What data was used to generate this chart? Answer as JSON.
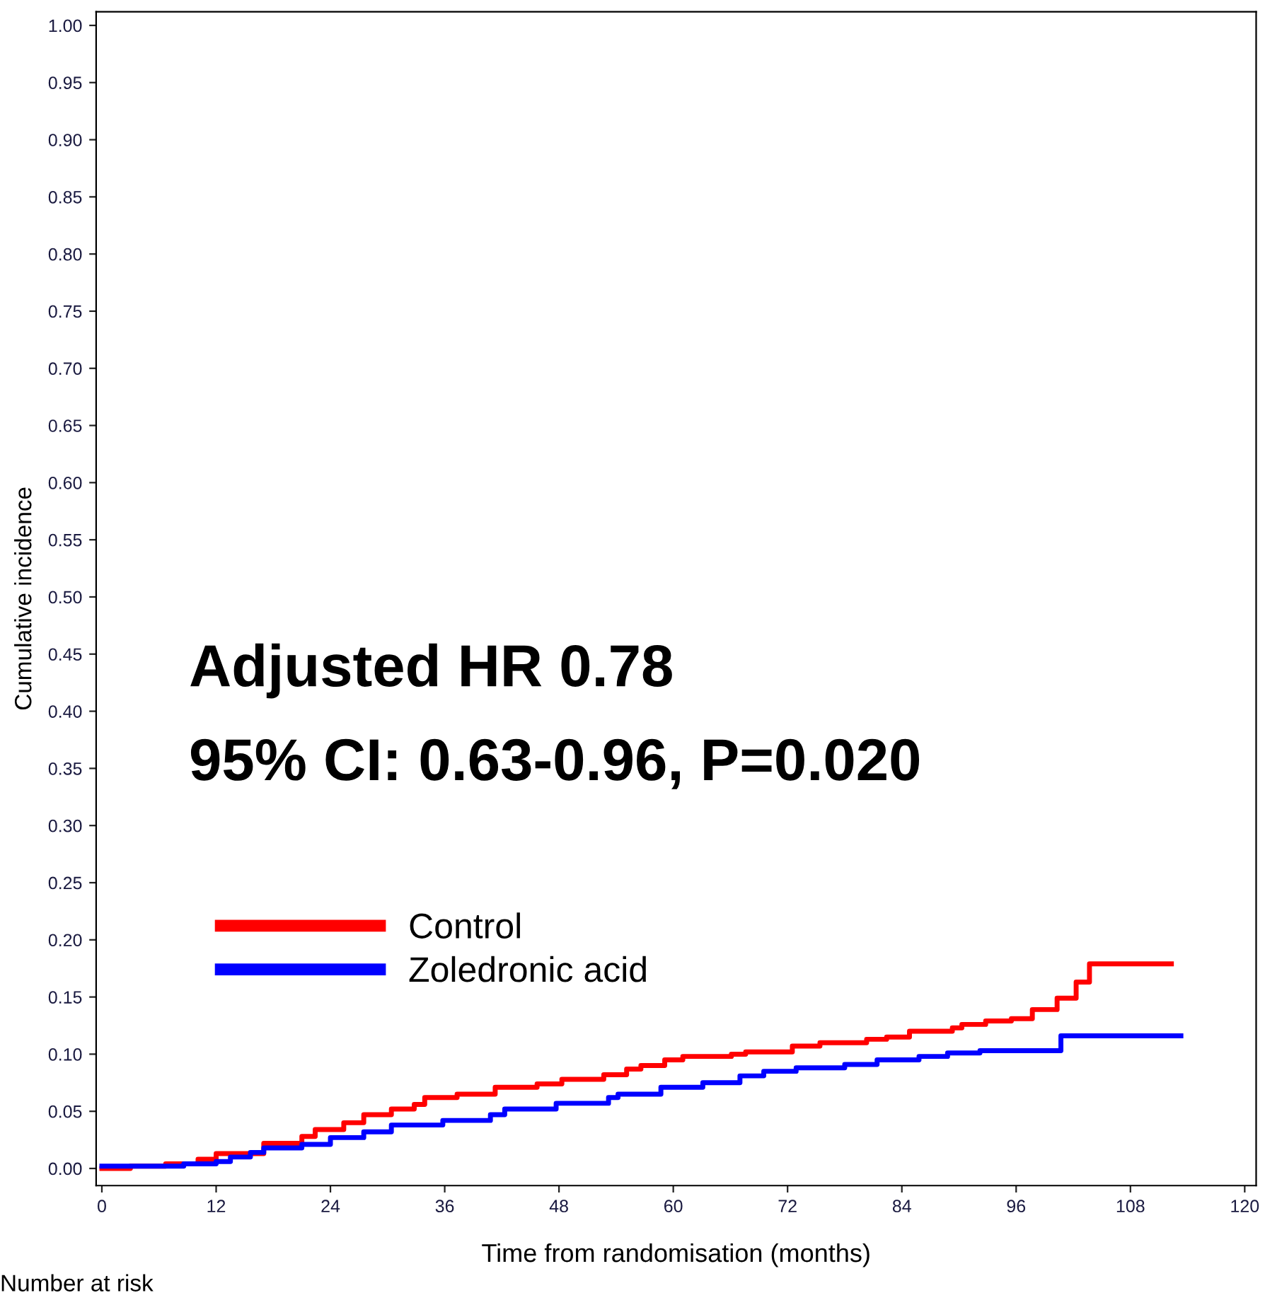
{
  "chart_data": {
    "type": "step",
    "xlabel": "Time from randomisation (months)",
    "ylabel": "Cumulative incidence",
    "xlim": [
      -0.6,
      121.2
    ],
    "ylim": [
      -0.015,
      1.012
    ],
    "xticks": [
      0,
      12,
      24,
      36,
      48,
      60,
      72,
      84,
      96,
      108,
      120
    ],
    "yticks": [
      {
        "value": 0,
        "label": "0.00"
      },
      {
        "value": 0.05,
        "label": "0.05"
      },
      {
        "value": 0.1,
        "label": "0.10"
      },
      {
        "value": 0.15,
        "label": "0.15"
      },
      {
        "value": 0.2,
        "label": "0.20"
      },
      {
        "value": 0.25,
        "label": "0.25"
      },
      {
        "value": 0.3,
        "label": "0.30"
      },
      {
        "value": 0.35,
        "label": "0.35"
      },
      {
        "value": 0.4,
        "label": "0.40"
      },
      {
        "value": 0.45,
        "label": "0.45"
      },
      {
        "value": 0.5,
        "label": "0.50"
      },
      {
        "value": 0.55,
        "label": "0.55"
      },
      {
        "value": 0.6,
        "label": "0.60"
      },
      {
        "value": 0.65,
        "label": "0.65"
      },
      {
        "value": 0.7,
        "label": "0.70"
      },
      {
        "value": 0.75,
        "label": "0.75"
      },
      {
        "value": 0.8,
        "label": "0.80"
      },
      {
        "value": 0.85,
        "label": "0.85"
      },
      {
        "value": 0.9,
        "label": "0.90"
      },
      {
        "value": 0.95,
        "label": "0.95"
      },
      {
        "value": 1.0,
        "label": "1.00"
      }
    ],
    "grid": false,
    "legend": "left",
    "annotations": [
      "Adjusted HR 0.78",
      "95% CI: 0.63-0.96, P=0.020",
      "Number at risk"
    ],
    "series": [
      {
        "name": "Control",
        "color": "#ff0000",
        "x": [
          0,
          3,
          6.7,
          10.1,
          12,
          17,
          21,
          22.4,
          25.4,
          27.5,
          30.4,
          32.8,
          33.9,
          37.3,
          41.3,
          45.7,
          48.3,
          52.7,
          55.1,
          56.6,
          59.1,
          61,
          66.1,
          67.6,
          72.5,
          75.4,
          80.3,
          82.4,
          84.8,
          89.3,
          90.3,
          92.8,
          95.5,
          97.7,
          100.3,
          102.3,
          103.7,
          112.3
        ],
        "values": [
          0,
          0.002,
          0.004,
          0.008,
          0.013,
          0.022,
          0.028,
          0.034,
          0.04,
          0.047,
          0.052,
          0.056,
          0.062,
          0.065,
          0.071,
          0.074,
          0.078,
          0.082,
          0.087,
          0.09,
          0.095,
          0.098,
          0.1,
          0.102,
          0.107,
          0.11,
          0.113,
          0.115,
          0.12,
          0.123,
          0.126,
          0.129,
          0.131,
          0.139,
          0.149,
          0.163,
          0.179,
          0.179
        ]
      },
      {
        "name": "Zoledronic acid",
        "color": "#0000ff",
        "x": [
          0,
          8.6,
          12,
          13.5,
          15.6,
          17,
          21,
          24,
          27.5,
          30.4,
          35.8,
          40.8,
          42.3,
          47.7,
          53.2,
          54.2,
          58.7,
          63.1,
          67,
          69.5,
          72.9,
          78,
          81.4,
          85.8,
          88.8,
          92.2,
          100.7,
          113.3
        ],
        "values": [
          0.002,
          0.004,
          0.006,
          0.01,
          0.014,
          0.018,
          0.021,
          0.027,
          0.032,
          0.038,
          0.042,
          0.047,
          0.052,
          0.057,
          0.062,
          0.065,
          0.071,
          0.075,
          0.081,
          0.085,
          0.088,
          0.091,
          0.095,
          0.098,
          0.101,
          0.103,
          0.116,
          0.116
        ]
      }
    ]
  }
}
